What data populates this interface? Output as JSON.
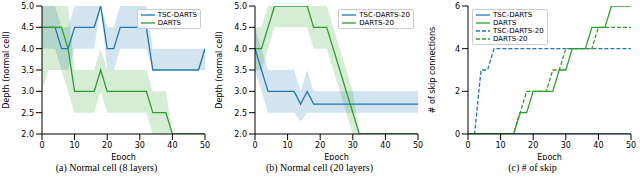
{
  "chart_data": [
    {
      "type": "line",
      "title": "(a) Normal cell (8 layers)",
      "x_label": "Epoch",
      "y_label": "Depth (normal cell)",
      "x": [
        0,
        2,
        4,
        6,
        8,
        10,
        12,
        14,
        16,
        18,
        20,
        22,
        24,
        26,
        28,
        30,
        32,
        34,
        36,
        38,
        40,
        42,
        44,
        46,
        48,
        50
      ],
      "xlim": [
        0,
        50
      ],
      "xticks": [
        0,
        10,
        20,
        30,
        40,
        50
      ],
      "ylim": [
        2,
        5
      ],
      "yticks": [
        {
          "value": 2,
          "label": "2.0"
        },
        {
          "value": 2.5,
          "label": "2.5"
        },
        {
          "value": 3,
          "label": "3.0"
        },
        {
          "value": 3.5,
          "label": "3.5"
        },
        {
          "value": 4,
          "label": "4.0"
        },
        {
          "value": 4.5,
          "label": "4.5"
        },
        {
          "value": 5,
          "label": "5.0"
        }
      ],
      "grid": false,
      "legend": "upper right",
      "series": [
        {
          "name": "TSC-DARTS",
          "color": "#1f77b4",
          "line_style": "solid",
          "values": [
            4.5,
            4.5,
            4.5,
            4,
            4,
            4.5,
            4.5,
            4.5,
            4.5,
            5,
            4,
            4,
            4.5,
            4.5,
            4.5,
            4.5,
            4.5,
            3.5,
            3.5,
            3.5,
            3.5,
            3.5,
            3.5,
            3.5,
            3.5,
            4
          ],
          "lower": [
            4,
            4,
            4,
            3.5,
            3.5,
            4,
            4,
            4,
            4,
            5,
            3.5,
            3.5,
            4,
            4,
            4,
            4,
            4,
            3.5,
            3.5,
            3.5,
            3.5,
            3.5,
            3.5,
            3.5,
            3.5,
            3.5
          ],
          "upper": [
            5,
            5,
            5,
            4.5,
            4.5,
            5,
            5,
            5,
            5,
            5,
            4.5,
            4.5,
            5,
            5,
            5,
            5,
            5,
            4,
            4,
            4,
            4,
            4,
            4,
            4,
            4,
            4
          ]
        },
        {
          "name": "DARTS",
          "color": "#2ca02c",
          "line_style": "solid",
          "values": [
            4.5,
            4.5,
            4.5,
            4.5,
            4,
            3,
            3,
            3,
            3,
            3.5,
            3,
            3,
            3,
            3,
            3,
            3,
            3,
            2.5,
            2.5,
            2.5,
            2,
            2,
            2,
            2,
            2,
            2
          ],
          "lower": [
            3,
            3.5,
            3.5,
            3.5,
            3,
            2.5,
            2.5,
            2.5,
            2.5,
            3,
            2.5,
            2.5,
            2.5,
            2.5,
            2.5,
            2.5,
            2.5,
            2,
            2,
            2,
            2,
            2,
            2,
            2,
            2,
            2
          ],
          "upper": [
            5,
            5,
            5,
            5,
            5,
            3.5,
            3.5,
            3.5,
            3.5,
            4,
            3.5,
            3.5,
            3.5,
            3.5,
            3.5,
            3.5,
            3.5,
            3,
            3,
            3,
            2,
            2,
            2,
            2,
            2,
            2
          ]
        }
      ]
    },
    {
      "type": "line",
      "title": "(b) Normal cell (20 layers)",
      "x_label": "Epoch",
      "y_label": "Depth (normal cell)",
      "x": [
        0,
        2,
        4,
        6,
        8,
        10,
        12,
        14,
        16,
        18,
        20,
        22,
        24,
        26,
        28,
        30,
        32,
        34,
        36,
        38,
        40,
        42,
        44,
        46,
        48,
        50
      ],
      "xlim": [
        0,
        50
      ],
      "xticks": [
        0,
        10,
        20,
        30,
        40,
        50
      ],
      "ylim": [
        2,
        5
      ],
      "yticks": [
        {
          "value": 2,
          "label": "2.0"
        },
        {
          "value": 2.5,
          "label": "2.5"
        },
        {
          "value": 3,
          "label": "3.0"
        },
        {
          "value": 3.5,
          "label": "3.5"
        },
        {
          "value": 4,
          "label": "4.0"
        },
        {
          "value": 4.5,
          "label": "4.5"
        },
        {
          "value": 5,
          "label": "5.0"
        }
      ],
      "grid": false,
      "legend": "upper right",
      "series": [
        {
          "name": "TSC-DARTS-20",
          "color": "#1f77b4",
          "line_style": "solid",
          "values": [
            4,
            3.5,
            3,
            3,
            3,
            3,
            3,
            2.7,
            3,
            2.7,
            2.7,
            2.7,
            2.7,
            2.7,
            2.7,
            2.7,
            2.7,
            2.7,
            2.7,
            2.7,
            2.7,
            2.7,
            2.7,
            2.7,
            2.7,
            2.7
          ],
          "lower": [
            3.5,
            3,
            2.5,
            2.5,
            2.5,
            2.5,
            2.5,
            2.3,
            2.5,
            2.5,
            2.5,
            2.5,
            2.5,
            2.5,
            2.5,
            2.5,
            2.5,
            2.5,
            2.5,
            2.5,
            2.5,
            2.5,
            2.5,
            2.5,
            2.5,
            2.5
          ],
          "upper": [
            4.5,
            4,
            3.5,
            3.5,
            3.5,
            3.5,
            3.5,
            3,
            3.5,
            3,
            3,
            3,
            3,
            3,
            3,
            3,
            3,
            3,
            3,
            3,
            3,
            3,
            3,
            3,
            3,
            3
          ]
        },
        {
          "name": "DARTS-20",
          "color": "#2ca02c",
          "line_style": "solid",
          "values": [
            4,
            4,
            4.5,
            5,
            5,
            5,
            5,
            5,
            5,
            4.5,
            4.5,
            4.5,
            4,
            3.5,
            3,
            2.5,
            2,
            2,
            2,
            2,
            2,
            2,
            2,
            2,
            2,
            2
          ],
          "lower": [
            3.5,
            3.5,
            4,
            4.5,
            4.5,
            4.5,
            4.5,
            4.5,
            4.5,
            4,
            4,
            4,
            3.5,
            3,
            2.5,
            2,
            2,
            2,
            2,
            2,
            2,
            2,
            2,
            2,
            2,
            2
          ],
          "upper": [
            4.5,
            4.5,
            5,
            5,
            5,
            5,
            5,
            5,
            5,
            5,
            5,
            5,
            4.5,
            4,
            3.5,
            3,
            2,
            2,
            2,
            2,
            2,
            2,
            2,
            2,
            2,
            2
          ]
        }
      ]
    },
    {
      "type": "line",
      "title": "(c) # of skip",
      "x_label": "Epoch",
      "y_label": "# of skip connections",
      "x": [
        0,
        2,
        4,
        6,
        8,
        10,
        12,
        14,
        16,
        18,
        20,
        22,
        24,
        26,
        28,
        30,
        32,
        34,
        36,
        38,
        40,
        42,
        44,
        46,
        48,
        50
      ],
      "xlim": [
        0,
        50
      ],
      "xticks": [
        0,
        10,
        20,
        30,
        40,
        50
      ],
      "ylim": [
        0,
        6
      ],
      "yticks": [
        0,
        2,
        4,
        6
      ],
      "grid": false,
      "legend": "upper left",
      "series": [
        {
          "name": "TSC-DARTS",
          "color": "#1f77b4",
          "line_style": "solid",
          "values": [
            0,
            0,
            0,
            0,
            0,
            0,
            0,
            0,
            0,
            0,
            0,
            0,
            0,
            0,
            0,
            0,
            0,
            0,
            0,
            0,
            0,
            0,
            0,
            0,
            0,
            0
          ]
        },
        {
          "name": "DARTS",
          "color": "#2ca02c",
          "line_style": "solid",
          "values": [
            0,
            0,
            0,
            0,
            0,
            0,
            0,
            0,
            1,
            1,
            2,
            2,
            2,
            2,
            3,
            3,
            4,
            4,
            4,
            5,
            5,
            5,
            6,
            6,
            6,
            6
          ]
        },
        {
          "name": "TSC-DARTS-20",
          "color": "#1f77b4",
          "line_style": "dashed",
          "values": [
            0,
            0,
            3,
            3,
            4,
            4,
            4,
            4,
            4,
            4,
            4,
            4,
            4,
            4,
            4,
            4,
            4,
            4,
            4,
            4,
            4,
            4,
            4,
            4,
            4,
            4
          ]
        },
        {
          "name": "DARTS-20",
          "color": "#2ca02c",
          "line_style": "dashed",
          "values": [
            0,
            0,
            0,
            0,
            0,
            0,
            0,
            0,
            1,
            2,
            2,
            2,
            2,
            3,
            3,
            4,
            4,
            4,
            4,
            4,
            5,
            5,
            5,
            5,
            5,
            5
          ]
        }
      ]
    }
  ]
}
